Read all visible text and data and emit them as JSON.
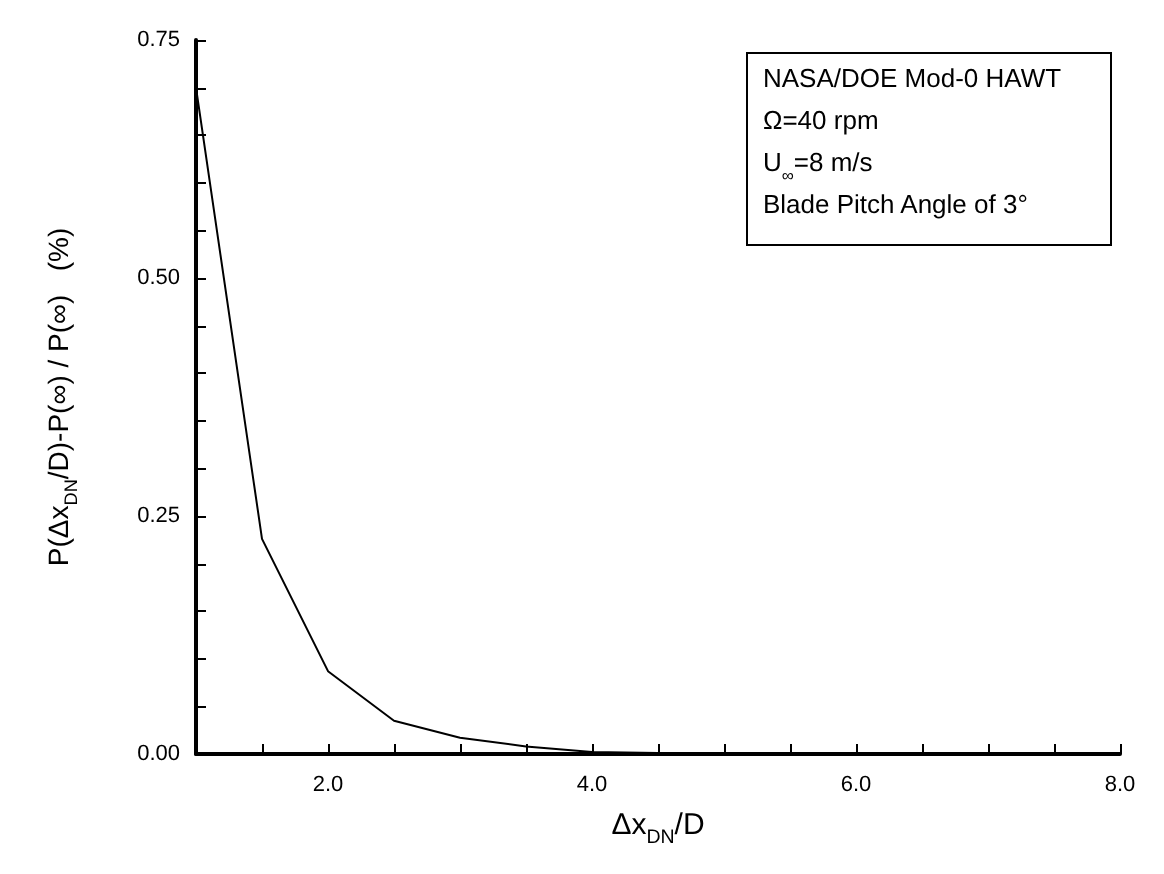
{
  "chart_data": {
    "type": "line",
    "xlabel": "Δx$_{DN}$/D",
    "ylabel": "P(Δx$_{DN}$/D)-P(∞) / P(∞)   (%)",
    "x": [
      1.0,
      1.5,
      2.0,
      2.5,
      3.0,
      3.5,
      4.0,
      4.5,
      5.0,
      5.5,
      6.0,
      6.5,
      7.0,
      7.5,
      8.0
    ],
    "series": [
      {
        "color": "#000000",
        "values": [
          0.7,
          0.226,
          0.087,
          0.035,
          0.017,
          0.008,
          0.002,
          0.001,
          0.0,
          0.0,
          0.0,
          0.0,
          0.0,
          0.0,
          0.0
        ]
      }
    ],
    "xlim": [
      1,
      8
    ],
    "xticks": [
      {
        "value": 1.5,
        "label": null
      },
      {
        "value": 2,
        "label": "2.0"
      },
      {
        "value": 2.5,
        "label": null
      },
      {
        "value": 3,
        "label": null
      },
      {
        "value": 3.5,
        "label": null
      },
      {
        "value": 4,
        "label": "4.0"
      },
      {
        "value": 4.5,
        "label": null
      },
      {
        "value": 5,
        "label": null
      },
      {
        "value": 5.5,
        "label": null
      },
      {
        "value": 6,
        "label": "6.0"
      },
      {
        "value": 6.5,
        "label": null
      },
      {
        "value": 7,
        "label": null
      },
      {
        "value": 7.5,
        "label": null
      },
      {
        "value": 8,
        "label": "8.0"
      }
    ],
    "ylim": [
      0,
      0.75
    ],
    "yticks": [
      {
        "value": 0,
        "label": "0.00"
      },
      {
        "value": 0.05,
        "label": null
      },
      {
        "value": 0.1,
        "label": null
      },
      {
        "value": 0.15,
        "label": null
      },
      {
        "value": 0.2,
        "label": null
      },
      {
        "value": 0.25,
        "label": "0.25"
      },
      {
        "value": 0.3,
        "label": null
      },
      {
        "value": 0.35,
        "label": null
      },
      {
        "value": 0.4,
        "label": null
      },
      {
        "value": 0.45,
        "label": null
      },
      {
        "value": 0.5,
        "label": "0.50"
      },
      {
        "value": 0.55,
        "label": null
      },
      {
        "value": 0.6,
        "label": null
      },
      {
        "value": 0.65,
        "label": null
      },
      {
        "value": 0.7,
        "label": null
      },
      {
        "value": 0.75,
        "label": "0.75"
      }
    ],
    "annotations": [
      "NASA/DOE Mod-0 HAWT",
      "Ω=40 rpm",
      "U$_{∞}$=8 m/s",
      "Blade Pitch Angle of 3°"
    ],
    "grid": false,
    "marker": "none",
    "line_style": "solid"
  }
}
